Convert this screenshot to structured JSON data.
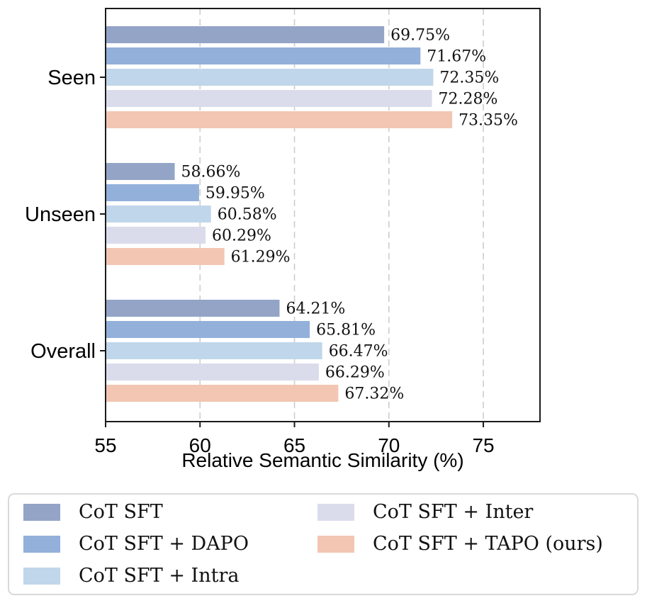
{
  "chart_data": {
    "type": "bar",
    "orientation": "horizontal",
    "title": "",
    "xlabel": "Relative Semantic Similarity (%)",
    "ylabel": "",
    "categories": [
      "Seen",
      "Unseen",
      "Overall"
    ],
    "series": [
      {
        "name": "CoT SFT",
        "color": "#93a4c7",
        "values": [
          69.75,
          58.66,
          64.21
        ]
      },
      {
        "name": "CoT SFT + DAPO",
        "color": "#92b0da",
        "values": [
          71.67,
          59.95,
          65.81
        ]
      },
      {
        "name": "CoT SFT + Intra",
        "color": "#c0d6ea",
        "values": [
          72.35,
          60.58,
          66.47
        ]
      },
      {
        "name": "CoT SFT + Inter",
        "color": "#dadcec",
        "values": [
          72.28,
          60.29,
          66.29
        ]
      },
      {
        "name": "CoT SFT + TAPO (ours)",
        "color": "#f2c6b2",
        "values": [
          73.35,
          61.29,
          67.32
        ]
      }
    ],
    "value_labels": [
      [
        "69.75%",
        "58.66%",
        "64.21%"
      ],
      [
        "71.67%",
        "59.95%",
        "65.81%"
      ],
      [
        "72.35%",
        "60.58%",
        "66.47%"
      ],
      [
        "72.28%",
        "60.29%",
        "66.29%"
      ],
      [
        "73.35%",
        "61.29%",
        "67.32%"
      ]
    ],
    "xlim": [
      55,
      78
    ],
    "xticks": [
      55,
      60,
      65,
      70,
      75
    ],
    "xtick_labels": [
      "55",
      "60",
      "65",
      "70",
      "75"
    ],
    "grid": "vertical-dashed",
    "legend_position": "bottom",
    "legend_columns": 2,
    "legend_column_split": 3
  },
  "style_colors": {
    "grid": "#cdcdcd",
    "axis": "#1a1a1a",
    "legend_border": "#d9d9d9",
    "text": "#111111"
  }
}
